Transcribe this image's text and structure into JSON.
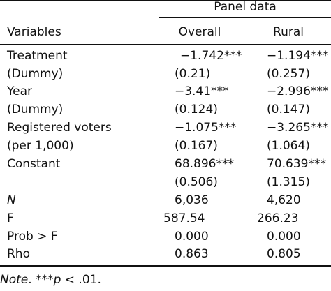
{
  "header": {
    "group": "Panel data",
    "col_variables": "Variables",
    "col_overall": "Overall",
    "col_rural": "Rural"
  },
  "rows": [
    {
      "label": "Treatment",
      "overall": "−1.742***",
      "rural": "−1.194***"
    },
    {
      "label": "(Dummy)",
      "overall": "(0.21)",
      "rural": "(0.257)"
    },
    {
      "label": "Year",
      "overall": "−3.41***",
      "rural": "−2.996***"
    },
    {
      "label": "(Dummy)",
      "overall": "(0.124)",
      "rural": "(0.147)"
    },
    {
      "label": "Registered voters",
      "overall": "−1.075***",
      "rural": "−3.265***"
    },
    {
      "label": "(per 1,000)",
      "overall": "(0.167)",
      "rural": "(1.064)"
    },
    {
      "label": "Constant",
      "overall": "68.896***",
      "rural": "70.639***"
    },
    {
      "label": "",
      "overall": "(0.506)",
      "rural": "(1.315)"
    },
    {
      "label": "N",
      "overall": "6,036",
      "rural": "4,620"
    },
    {
      "label": "F",
      "overall": "587.54",
      "rural": "266.23"
    },
    {
      "label": "Prob > F",
      "overall": "0.000",
      "rural": "0.000"
    },
    {
      "label": "Rho",
      "overall": "0.863",
      "rural": "0.805"
    }
  ],
  "note": {
    "prefix": "Note",
    "text": ". ***",
    "p": "p",
    "suffix": " < .01."
  }
}
